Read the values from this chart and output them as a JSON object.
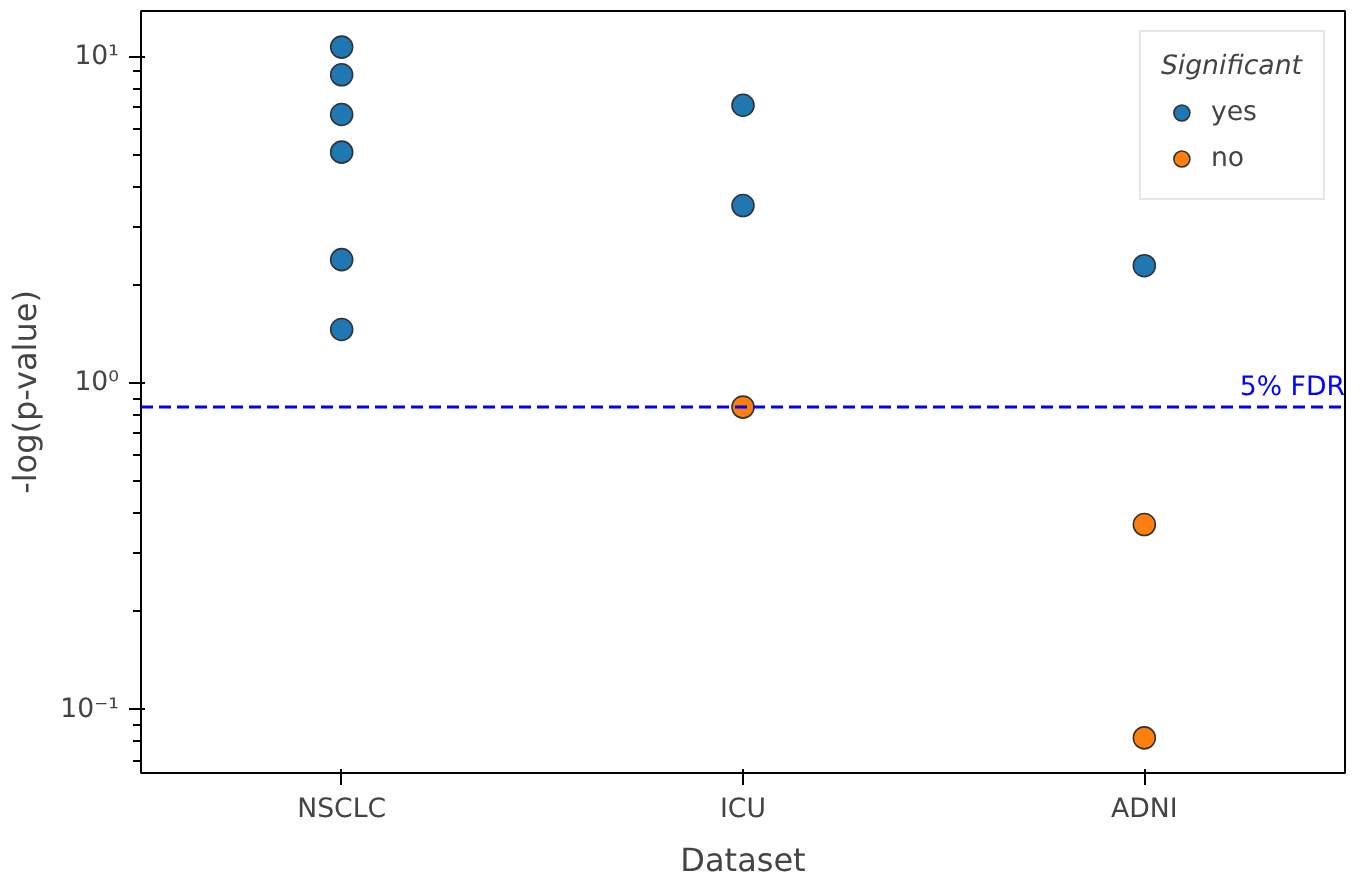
{
  "chart_data": {
    "type": "scatter",
    "xlabel": "Dataset",
    "ylabel": "-log(p-value)",
    "legend_title": "Significant",
    "legend": "top right",
    "marker": "circle",
    "log": "y",
    "grid": false,
    "categories": [
      "NSCLC",
      "ICU",
      "ADNI"
    ],
    "ylim": [
      0.064,
      13.8
    ],
    "yticks": [
      {
        "value": 0.1,
        "label": "10⁻¹"
      },
      {
        "value": 1,
        "label": "10⁰"
      },
      {
        "value": 10,
        "label": "10¹"
      }
    ],
    "series": [
      {
        "name": "yes",
        "color": "#1f77b4",
        "x": [
          "NSCLC",
          "NSCLC",
          "NSCLC",
          "NSCLC",
          "NSCLC",
          "NSCLC",
          "ICU",
          "ICU",
          "ADNI"
        ],
        "values": [
          10.7,
          8.8,
          6.65,
          5.1,
          2.39,
          1.46,
          7.1,
          3.5,
          2.29
        ]
      },
      {
        "name": "no",
        "color": "#ff7f0e",
        "x": [
          "ICU",
          "ADNI",
          "ADNI"
        ],
        "values": [
          0.845,
          0.369,
          0.082
        ]
      }
    ],
    "ref_lines": [
      {
        "axis": "y",
        "value": 0.845,
        "label": "5% FDR",
        "color": "#0000ff",
        "line_style": "dashed"
      }
    ]
  }
}
